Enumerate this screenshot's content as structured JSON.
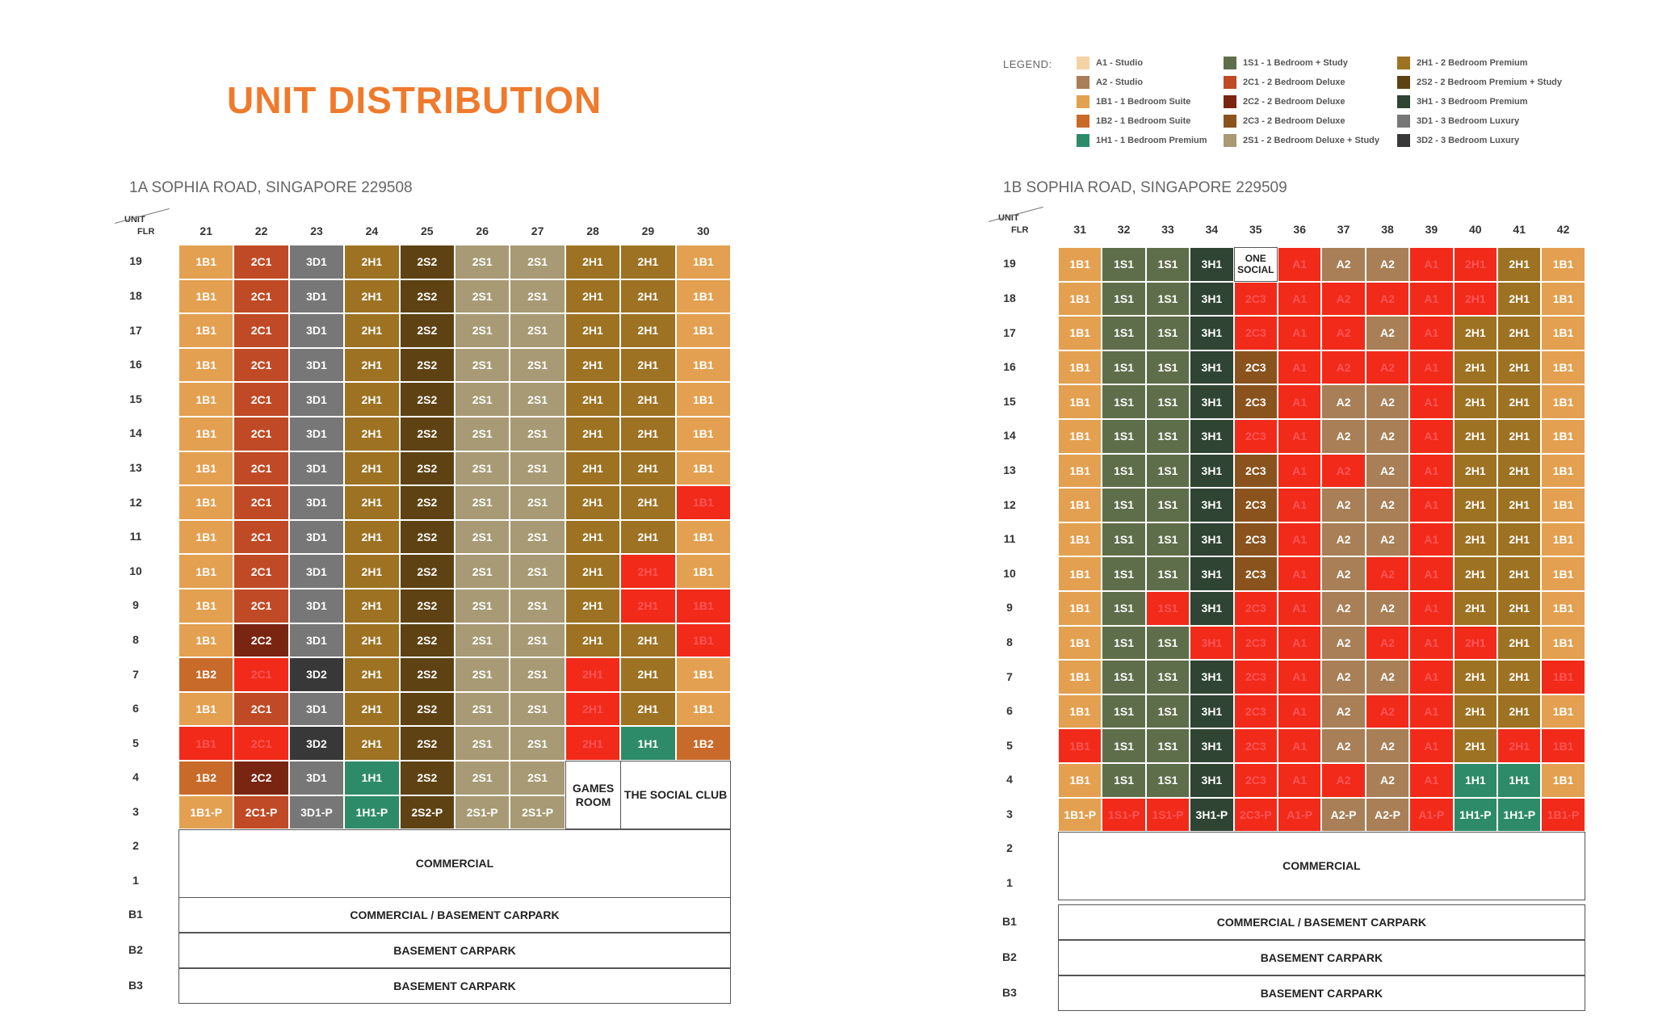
{
  "title": "UNIT DISTRIBUTION",
  "legend": {
    "label": "LEGEND:",
    "items": [
      {
        "code": "A1",
        "label": "A1 - Studio",
        "color": "#f5d2a4"
      },
      {
        "code": "A2",
        "label": "A2 - Studio",
        "color": "#a87f56"
      },
      {
        "code": "1B1",
        "label": "1B1 - 1 Bedroom Suite",
        "color": "#e3a050"
      },
      {
        "code": "1B2",
        "label": "1B2 - 1 Bedroom Suite",
        "color": "#c86a2a"
      },
      {
        "code": "1H1",
        "label": "1H1 - 1 Bedroom Premium",
        "color": "#2e8b6a"
      },
      {
        "code": "1S1",
        "label": "1S1 - 1 Bedroom + Study",
        "color": "#5f6e4a"
      },
      {
        "code": "2C1",
        "label": "2C1 - 2 Bedroom Deluxe",
        "color": "#c04a25"
      },
      {
        "code": "2C2",
        "label": "2C2 - 2 Bedroom Deluxe",
        "color": "#7a2512"
      },
      {
        "code": "2C3",
        "label": "2C3 - 2 Bedroom Deluxe",
        "color": "#8a531d"
      },
      {
        "code": "2S1",
        "label": "2S1 - 2 Bedroom Deluxe + Study",
        "color": "#a79a74"
      },
      {
        "code": "2H1",
        "label": "2H1 - 2 Bedroom Premium",
        "color": "#9d7222"
      },
      {
        "code": "2S2",
        "label": "2S2 - 2 Bedroom Premium + Study",
        "color": "#5e4214"
      },
      {
        "code": "3H1",
        "label": "3H1 - 3 Bedroom Premium",
        "color": "#2f4433"
      },
      {
        "code": "3D1",
        "label": "3D1 - 3 Bedroom Luxury",
        "color": "#777777"
      },
      {
        "code": "3D2",
        "label": "3D2 - 3 Bedroom Luxury",
        "color": "#383838"
      }
    ]
  },
  "sold_color": "#f12a1a",
  "building_a": {
    "address": "1A SOPHIA ROAD, SINGAPORE 229508",
    "unit_label": "UNIT",
    "floor_label": "FLR",
    "units": [
      "21",
      "22",
      "23",
      "24",
      "25",
      "26",
      "27",
      "28",
      "29",
      "30"
    ],
    "floors": [
      "19",
      "18",
      "17",
      "16",
      "15",
      "14",
      "13",
      "12",
      "11",
      "10",
      "9",
      "8",
      "7",
      "6",
      "5",
      "4",
      "3",
      "2",
      "1",
      "B1",
      "B2",
      "B3"
    ],
    "rows": [
      [
        "1B1",
        "2C1",
        "3D1",
        "2H1",
        "2S2",
        "2S1",
        "2S1",
        "2H1",
        "2H1",
        "1B1"
      ],
      [
        "1B1",
        "2C1",
        "3D1",
        "2H1",
        "2S2",
        "2S1",
        "2S1",
        "2H1",
        "2H1",
        "1B1"
      ],
      [
        "1B1",
        "2C1",
        "3D1",
        "2H1",
        "2S2",
        "2S1",
        "2S1",
        "2H1",
        "2H1",
        "1B1"
      ],
      [
        "1B1",
        "2C1",
        "3D1",
        "2H1",
        "2S2",
        "2S1",
        "2S1",
        "2H1",
        "2H1",
        "1B1"
      ],
      [
        "1B1",
        "2C1",
        "3D1",
        "2H1",
        "2S2",
        "2S1",
        "2S1",
        "2H1",
        "2H1",
        "1B1"
      ],
      [
        "1B1",
        "2C1",
        "3D1",
        "2H1",
        "2S2",
        "2S1",
        "2S1",
        "2H1",
        "2H1",
        "1B1"
      ],
      [
        "1B1",
        "2C1",
        "3D1",
        "2H1",
        "2S2",
        "2S1",
        "2S1",
        "2H1",
        "2H1",
        "1B1"
      ],
      [
        "1B1",
        "2C1",
        "3D1",
        "2H1",
        "2S2",
        "2S1",
        "2S1",
        "2H1",
        "2H1",
        "1B1*"
      ],
      [
        "1B1",
        "2C1",
        "3D1",
        "2H1",
        "2S2",
        "2S1",
        "2S1",
        "2H1",
        "2H1",
        "1B1"
      ],
      [
        "1B1",
        "2C1",
        "3D1",
        "2H1",
        "2S2",
        "2S1",
        "2S1",
        "2H1",
        "2H1*",
        "1B1"
      ],
      [
        "1B1",
        "2C1",
        "3D1",
        "2H1",
        "2S2",
        "2S1",
        "2S1",
        "2H1",
        "2H1*",
        "1B1*"
      ],
      [
        "1B1",
        "2C2",
        "3D1",
        "2H1",
        "2S2",
        "2S1",
        "2S1",
        "2H1",
        "2H1",
        "1B1*"
      ],
      [
        "1B2",
        "2C1*",
        "3D2",
        "2H1",
        "2S2",
        "2S1",
        "2S1",
        "2H1*",
        "2H1",
        "1B1"
      ],
      [
        "1B1",
        "2C1",
        "3D1",
        "2H1",
        "2S2",
        "2S1",
        "2S1",
        "2H1*",
        "2H1",
        "1B1"
      ],
      [
        "1B1*",
        "2C1*",
        "3D2",
        "2H1",
        "2S2",
        "2S1",
        "2S1",
        "2H1*",
        "1H1",
        "1B2"
      ],
      [
        "1B2",
        "2C2",
        "3D1",
        "1H1",
        "2S2",
        "2S1",
        "2S1"
      ],
      [
        "1B1-P",
        "2C1-P",
        "3D1-P",
        "1H1-P",
        "2S2-P",
        "2S1-P",
        "2S1-P"
      ]
    ],
    "games_room": "GAMES ROOM",
    "social_club": "THE SOCIAL CLUB",
    "commercial": "COMMERCIAL",
    "b1": "COMMERCIAL / BASEMENT CARPARK",
    "b2": "BASEMENT CARPARK",
    "b3": "BASEMENT CARPARK"
  },
  "building_b": {
    "address": "1B SOPHIA ROAD, SINGAPORE 229509",
    "unit_label": "UNIT",
    "floor_label": "FLR",
    "units": [
      "31",
      "32",
      "33",
      "34",
      "35",
      "36",
      "37",
      "38",
      "39",
      "40",
      "41",
      "42"
    ],
    "floors": [
      "19",
      "18",
      "17",
      "16",
      "15",
      "14",
      "13",
      "12",
      "11",
      "10",
      "9",
      "8",
      "7",
      "6",
      "5",
      "4",
      "3",
      "2",
      "1",
      "B1",
      "B2",
      "B3"
    ],
    "one_social": "ONE SOCIAL",
    "rows": [
      [
        "1B1",
        "1S1",
        "1S1",
        "3H1",
        "",
        "A1*",
        "A2",
        "A2",
        "A1*",
        "2H1*",
        "2H1",
        "1B1"
      ],
      [
        "1B1",
        "1S1",
        "1S1",
        "3H1",
        "2C3*",
        "A1*",
        "A2*",
        "A2*",
        "A1*",
        "2H1*",
        "2H1",
        "1B1"
      ],
      [
        "1B1",
        "1S1",
        "1S1",
        "3H1",
        "2C3*",
        "A1*",
        "A2*",
        "A2",
        "A1*",
        "2H1",
        "2H1",
        "1B1"
      ],
      [
        "1B1",
        "1S1",
        "1S1",
        "3H1",
        "2C3",
        "A1*",
        "A2*",
        "A2*",
        "A1*",
        "2H1",
        "2H1",
        "1B1"
      ],
      [
        "1B1",
        "1S1",
        "1S1",
        "3H1",
        "2C3",
        "A1*",
        "A2",
        "A2",
        "A1*",
        "2H1",
        "2H1",
        "1B1"
      ],
      [
        "1B1",
        "1S1",
        "1S1",
        "3H1",
        "2C3*",
        "A1*",
        "A2",
        "A2",
        "A1*",
        "2H1",
        "2H1",
        "1B1"
      ],
      [
        "1B1",
        "1S1",
        "1S1",
        "3H1",
        "2C3",
        "A1*",
        "A2*",
        "A2",
        "A1*",
        "2H1",
        "2H1",
        "1B1"
      ],
      [
        "1B1",
        "1S1",
        "1S1",
        "3H1",
        "2C3",
        "A1*",
        "A2",
        "A2",
        "A1*",
        "2H1",
        "2H1",
        "1B1"
      ],
      [
        "1B1",
        "1S1",
        "1S1",
        "3H1",
        "2C3",
        "A1*",
        "A2",
        "A2",
        "A1*",
        "2H1",
        "2H1",
        "1B1"
      ],
      [
        "1B1",
        "1S1",
        "1S1",
        "3H1",
        "2C3",
        "A1*",
        "A2",
        "A2*",
        "A1*",
        "2H1",
        "2H1",
        "1B1"
      ],
      [
        "1B1",
        "1S1",
        "1S1*",
        "3H1",
        "2C3*",
        "A1*",
        "A2",
        "A2",
        "A1*",
        "2H1",
        "2H1",
        "1B1"
      ],
      [
        "1B1",
        "1S1",
        "1S1",
        "3H1*",
        "2C3*",
        "A1*",
        "A2",
        "A2*",
        "A1*",
        "2H1*",
        "2H1",
        "1B1"
      ],
      [
        "1B1",
        "1S1",
        "1S1",
        "3H1",
        "2C3*",
        "A1*",
        "A2",
        "A2",
        "A1*",
        "2H1",
        "2H1",
        "1B1*"
      ],
      [
        "1B1",
        "1S1",
        "1S1",
        "3H1",
        "2C3*",
        "A1*",
        "A2",
        "A2*",
        "A1*",
        "2H1",
        "2H1",
        "1B1"
      ],
      [
        "1B1*",
        "1S1",
        "1S1",
        "3H1",
        "2C3*",
        "A1*",
        "A2",
        "A2",
        "A1*",
        "2H1",
        "2H1*",
        "1B1*"
      ],
      [
        "1B1",
        "1S1",
        "1S1",
        "3H1",
        "2C3*",
        "A1*",
        "A2*",
        "A2",
        "A1*",
        "1H1",
        "1H1",
        "1B1"
      ],
      [
        "1B1-P",
        "1S1-P*",
        "1S1-P*",
        "3H1-P",
        "2C3-P*",
        "A1-P*",
        "A2-P",
        "A2-P",
        "A1-P*",
        "1H1-P",
        "1H1-P",
        "1B1-P*"
      ]
    ],
    "commercial": "COMMERCIAL",
    "b1": "COMMERCIAL / BASEMENT CARPARK",
    "b2": "BASEMENT CARPARK",
    "b3": "BASEMENT CARPARK"
  }
}
